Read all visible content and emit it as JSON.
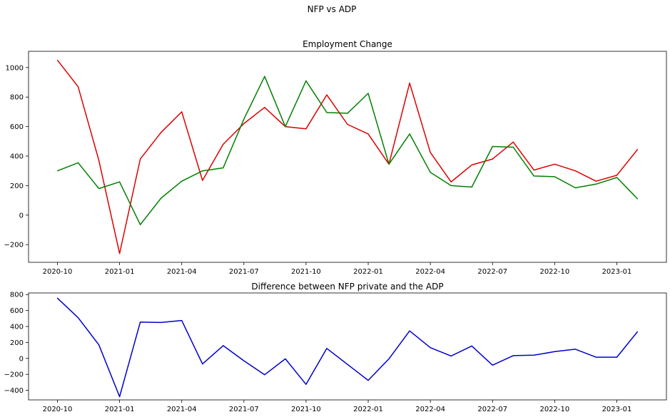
{
  "suptitle": "NFP vs ADP",
  "chart_data": [
    {
      "type": "line",
      "title": "Employment Change",
      "xlabel": "",
      "ylabel": "",
      "x": [
        "2020-10",
        "2020-11",
        "2020-12",
        "2021-01",
        "2021-02",
        "2021-03",
        "2021-04",
        "2021-05",
        "2021-06",
        "2021-07",
        "2021-08",
        "2021-09",
        "2021-10",
        "2021-11",
        "2021-12",
        "2022-01",
        "2022-02",
        "2022-03",
        "2022-04",
        "2022-05",
        "2022-06",
        "2022-07",
        "2022-08",
        "2022-09",
        "2022-10",
        "2022-11",
        "2022-12",
        "2023-01",
        "2023-02"
      ],
      "xticks": [
        "2020-10",
        "2021-01",
        "2021-04",
        "2021-07",
        "2021-10",
        "2022-01",
        "2022-04",
        "2022-07",
        "2022-10",
        "2023-01"
      ],
      "yticks": [
        -200,
        0,
        200,
        400,
        600,
        800,
        1000
      ],
      "ylim": [
        -320,
        1110
      ],
      "grid": false,
      "series": [
        {
          "color": "#dd0000",
          "values": [
            1050,
            870,
            370,
            -260,
            380,
            560,
            700,
            235,
            480,
            620,
            730,
            600,
            585,
            815,
            615,
            550,
            345,
            895,
            425,
            225,
            340,
            380,
            495,
            305,
            345,
            300,
            230,
            270,
            445
          ]
        },
        {
          "color": "#008000",
          "values": [
            300,
            355,
            180,
            225,
            -65,
            115,
            230,
            300,
            320,
            650,
            940,
            600,
            910,
            695,
            690,
            825,
            345,
            550,
            290,
            200,
            190,
            465,
            460,
            265,
            260,
            185,
            210,
            255,
            110
          ]
        }
      ]
    },
    {
      "type": "line",
      "title": "Difference between NFP private and the ADP",
      "xlabel": "",
      "ylabel": "",
      "x": [
        "2020-10",
        "2020-11",
        "2020-12",
        "2021-01",
        "2021-02",
        "2021-03",
        "2021-04",
        "2021-05",
        "2021-06",
        "2021-07",
        "2021-08",
        "2021-09",
        "2021-10",
        "2021-11",
        "2021-12",
        "2022-01",
        "2022-02",
        "2022-03",
        "2022-04",
        "2022-05",
        "2022-06",
        "2022-07",
        "2022-08",
        "2022-09",
        "2022-10",
        "2022-11",
        "2022-12",
        "2023-01",
        "2023-02"
      ],
      "xticks": [
        "2020-10",
        "2021-01",
        "2021-04",
        "2021-07",
        "2021-10",
        "2022-01",
        "2022-04",
        "2022-07",
        "2022-10",
        "2023-01"
      ],
      "yticks": [
        -400,
        -200,
        0,
        200,
        400,
        600,
        800
      ],
      "ylim": [
        -520,
        820
      ],
      "grid": false,
      "series": [
        {
          "color": "#0000cc",
          "values": [
            755,
            510,
            170,
            -480,
            455,
            450,
            475,
            -70,
            160,
            -30,
            -205,
            -5,
            -325,
            125,
            -75,
            -275,
            -5,
            345,
            135,
            30,
            155,
            -85,
            35,
            40,
            85,
            115,
            15,
            15,
            335
          ]
        }
      ]
    }
  ]
}
